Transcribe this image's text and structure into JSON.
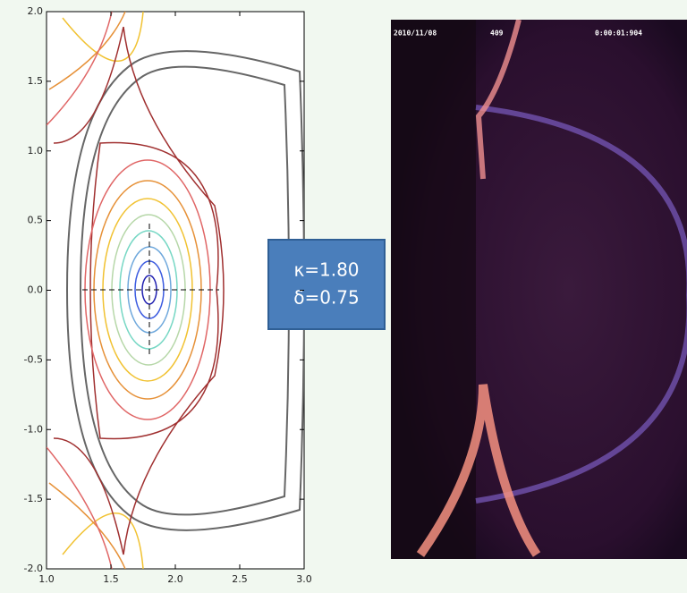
{
  "chart_data": {
    "type": "contour",
    "xlim": [
      1.0,
      3.0
    ],
    "ylim": [
      -2.0,
      2.0
    ],
    "xticks": [
      {
        "value": 1.0,
        "label": "1.0"
      },
      {
        "value": 1.5,
        "label": "1.5"
      },
      {
        "value": 2.0,
        "label": "2.0"
      },
      {
        "value": 2.5,
        "label": "2.5"
      },
      {
        "value": 3.0,
        "label": "3.0"
      }
    ],
    "yticks": [
      {
        "value": -2.0,
        "label": "-2.0"
      },
      {
        "value": -1.5,
        "label": "-1.5"
      },
      {
        "value": -1.0,
        "label": "-1.0"
      },
      {
        "value": -0.5,
        "label": "-0.5"
      },
      {
        "value": 0.0,
        "label": "0.0"
      },
      {
        "value": 0.5,
        "label": "0.5"
      },
      {
        "value": 1.0,
        "label": "1.0"
      },
      {
        "value": 1.5,
        "label": "1.5"
      },
      {
        "value": 2.0,
        "label": "2.0"
      }
    ],
    "annotation": {
      "kappa": "κ=1.80",
      "delta": "δ=0.75"
    },
    "camera": {
      "date": "2010/11/08",
      "frame": "409",
      "time": "0:00:01:904"
    }
  }
}
